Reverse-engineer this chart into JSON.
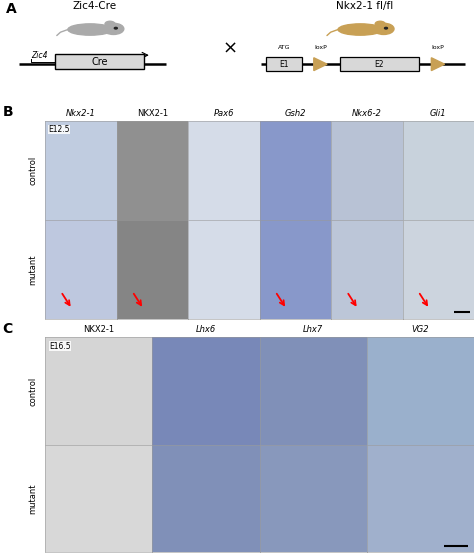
{
  "fig_width": 4.74,
  "fig_height": 5.55,
  "background": "#ffffff",
  "panel_A": {
    "label": "A",
    "left_title": "Zic4-Cre",
    "right_title": "Nkx2-1 fl/fl",
    "cross_symbol": "×",
    "left_gene": "Zic4",
    "left_box": "Cre",
    "right_exons": [
      "E1",
      "E2"
    ],
    "right_annotations": [
      "ATG",
      "loxP",
      "loxP"
    ],
    "mouse_left_color": "#aaaaaa",
    "mouse_right_color": "#c8a055"
  },
  "panel_B": {
    "label": "B",
    "timepoint": "E12.5",
    "col_labels": [
      "Nkx2-1",
      "NKX2-1",
      "Pax6",
      "Gsh2",
      "Nkx6-2",
      "Gli1"
    ],
    "col_labels_italic": [
      true,
      false,
      true,
      true,
      true,
      true
    ],
    "row_labels": [
      "control",
      "mutant"
    ],
    "bg_colors": [
      [
        "#c8d4e8",
        "#888888",
        "#d8dfe8",
        "#8898c8",
        "#c0cad8",
        "#ccd4de"
      ],
      [
        "#c8d4e8",
        "#888888",
        "#d8dfe8",
        "#8898c8",
        "#c0cad8",
        "#ccd4de"
      ]
    ],
    "red_arrow_cols": [
      0,
      1,
      3,
      4,
      5
    ]
  },
  "panel_C": {
    "label": "C",
    "timepoint": "E16.5",
    "col_labels": [
      "NKX2-1",
      "Lhx6",
      "Lhx7",
      "VG2"
    ],
    "col_labels_italic": [
      false,
      true,
      true,
      true
    ],
    "row_labels": [
      "control",
      "mutant"
    ],
    "bg_colors": [
      [
        "#d8d8d8",
        "#7888b8",
        "#8090b8",
        "#9ab0d0"
      ],
      [
        "#d8d8d8",
        "#8090b8",
        "#8898c0",
        "#a0b0cc"
      ]
    ]
  }
}
